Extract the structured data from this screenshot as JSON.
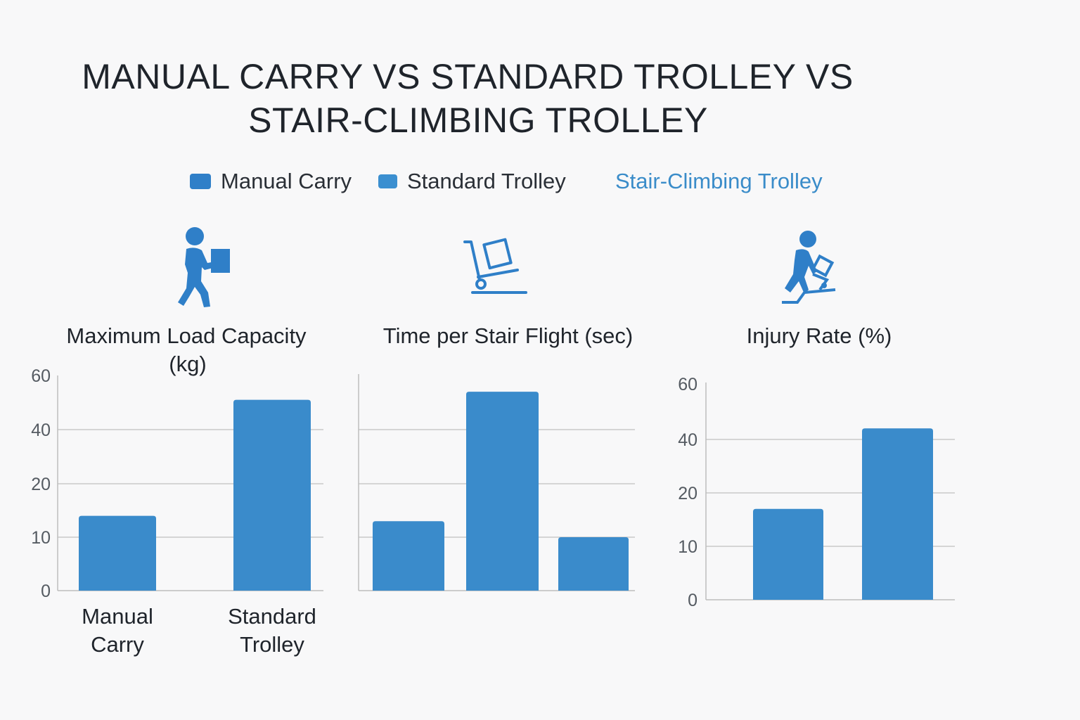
{
  "title": {
    "line1": "MANUAL CARRY VS STANDARD TROLLEY VS",
    "line2": "STAIR-CLIMBING TROLLEY"
  },
  "legend": [
    {
      "label": "Manual Carry",
      "color": "#2f7fc8",
      "swatch": true
    },
    {
      "label": "Standard Trolley",
      "color": "#3b8fd0",
      "swatch": true
    },
    {
      "label": "Stair-Climbing Trolley",
      "color": "#3a8cc9",
      "swatch": false
    }
  ],
  "icons": {
    "panel1": "person-carrying-box-icon",
    "panel2": "hand-trolley-icon",
    "panel3": "person-pushing-trolley-icon",
    "color": "#2f7fc8"
  },
  "colors": {
    "bar": "#3a8bcb",
    "grid": "#c9c9c9",
    "axis": "#bdbdbd"
  },
  "chart_data": [
    {
      "type": "bar",
      "title": "Maximum Load Capacity (kg)",
      "title_lines": [
        "Maximum Load Capacity",
        "(kg)"
      ],
      "categories": [
        "Manual Carry",
        "Standard Trolley"
      ],
      "category_lines": [
        [
          "Manual",
          "Carry"
        ],
        [
          "Standard",
          "Trolley"
        ]
      ],
      "values": [
        14,
        51
      ],
      "tick_labels": [
        "0",
        "10",
        "20",
        "40",
        "60"
      ],
      "grid": true
    },
    {
      "type": "bar",
      "title": "Time per Stair Flight (sec)",
      "title_lines": [
        "Time per Stair Flight (sec)"
      ],
      "categories": [
        "",
        "",
        ""
      ],
      "values": [
        13,
        54,
        10
      ],
      "tick_labels": [],
      "grid": true
    },
    {
      "type": "bar",
      "title": "Injury Rate (%)",
      "title_lines": [
        "Injury Rate (%)"
      ],
      "categories": [
        "",
        ""
      ],
      "values": [
        17,
        44
      ],
      "tick_labels": [
        "0",
        "10",
        "20",
        "40",
        "60"
      ],
      "grid": true
    }
  ]
}
